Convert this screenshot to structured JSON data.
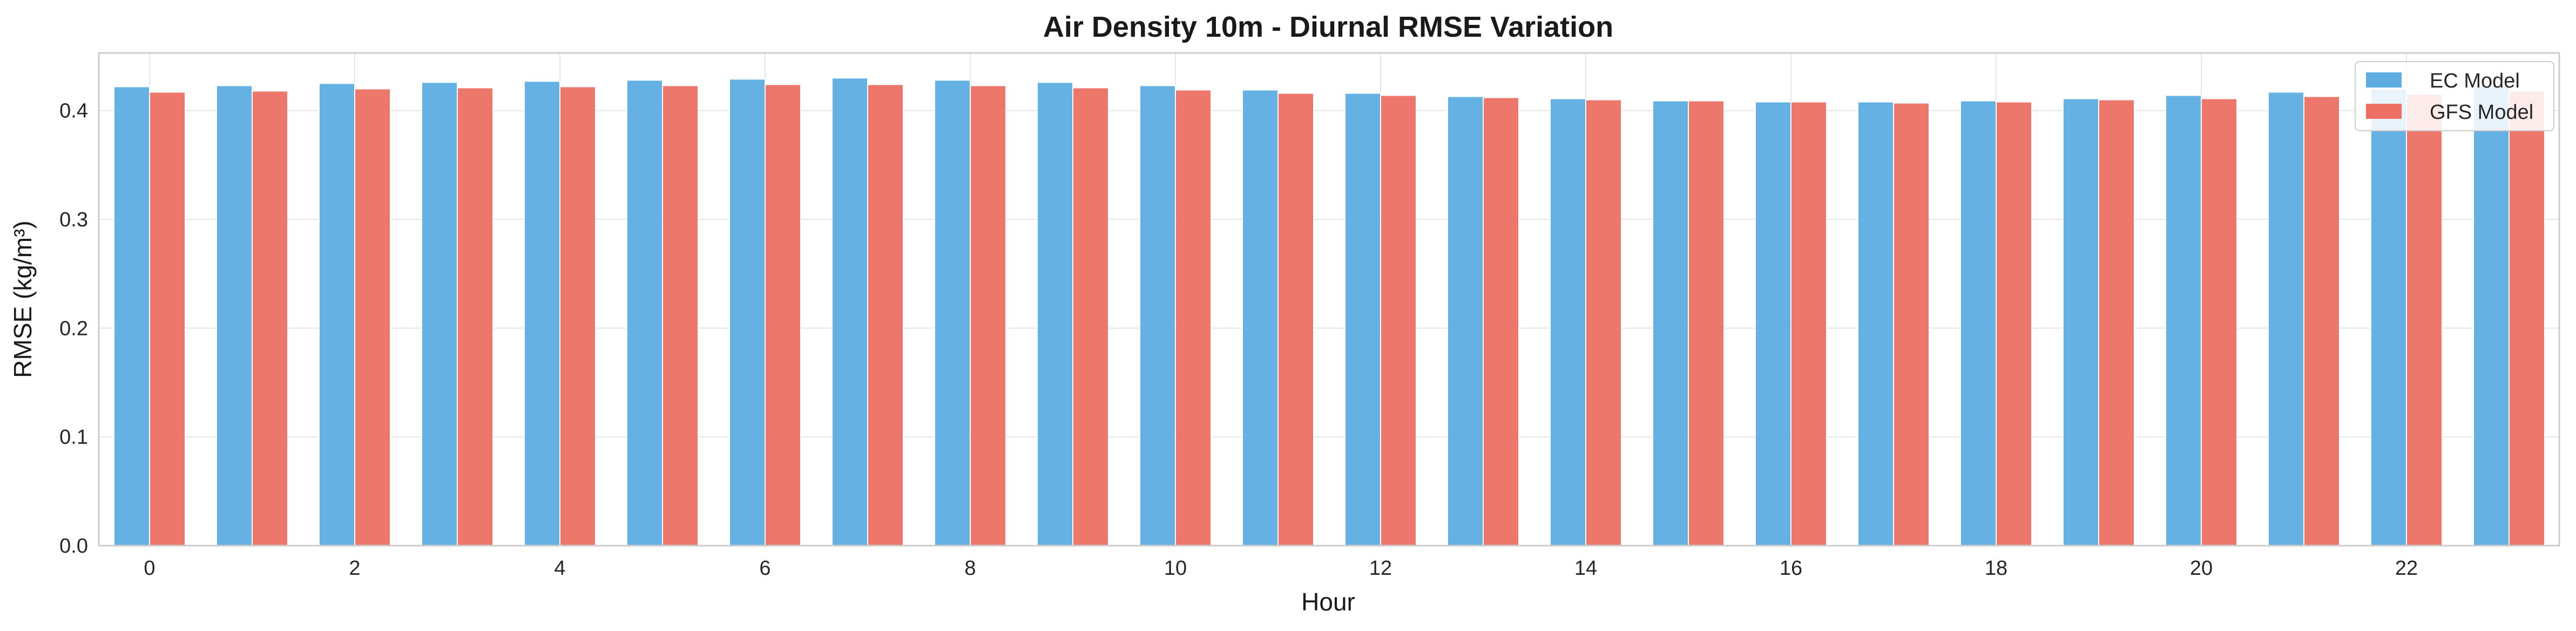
{
  "chart_data": {
    "type": "bar",
    "title": "Air Density 10m - Diurnal RMSE Variation",
    "xlabel": "Hour",
    "ylabel": "RMSE (kg/m³)",
    "categories": [
      0,
      1,
      2,
      3,
      4,
      5,
      6,
      7,
      8,
      9,
      10,
      11,
      12,
      13,
      14,
      15,
      16,
      17,
      18,
      19,
      20,
      21,
      22,
      23
    ],
    "xticks": [
      "0",
      "2",
      "4",
      "6",
      "8",
      "10",
      "12",
      "14",
      "16",
      "18",
      "20",
      "22"
    ],
    "yticks": [
      "0.0",
      "0.1",
      "0.2",
      "0.3",
      "0.4"
    ],
    "ylim": [
      0,
      0.453
    ],
    "grid": true,
    "legend_position": "top-right",
    "series": [
      {
        "name": "EC Model",
        "color": "#5dade2",
        "values": [
          0.422,
          0.423,
          0.425,
          0.426,
          0.427,
          0.428,
          0.429,
          0.43,
          0.428,
          0.426,
          0.423,
          0.419,
          0.416,
          0.413,
          0.411,
          0.409,
          0.408,
          0.408,
          0.409,
          0.411,
          0.414,
          0.417,
          0.42,
          0.423
        ]
      },
      {
        "name": "GFS Model",
        "color": "#ec7063",
        "values": [
          0.417,
          0.418,
          0.42,
          0.421,
          0.422,
          0.423,
          0.424,
          0.424,
          0.423,
          0.421,
          0.419,
          0.416,
          0.414,
          0.412,
          0.41,
          0.409,
          0.408,
          0.407,
          0.408,
          0.41,
          0.411,
          0.413,
          0.415,
          0.418
        ]
      }
    ]
  }
}
